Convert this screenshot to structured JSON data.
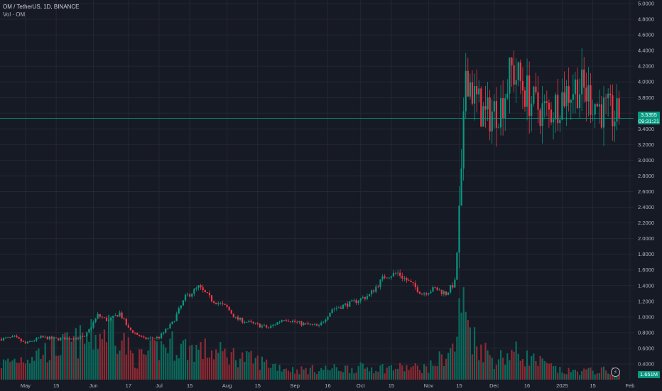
{
  "legend": {
    "symbol_line": "OM / TetherUS, 1D, BINANCE",
    "volume_line": "Vol · OM"
  },
  "price_tag": {
    "price": "3.5355",
    "countdown": "09:31:21"
  },
  "volume_tag": "1.651M",
  "scale_button": "⚡",
  "colors": {
    "background": "#161a25",
    "grid": "#242733",
    "up": "#089981",
    "down": "#f23645",
    "up_volume": "#0b6b5c",
    "down_volume": "#8e2a33",
    "axis_text": "#b2b5be",
    "last_price_line": "#089981"
  },
  "chart_data": {
    "type": "candlestick",
    "symbol": "OM / TetherUS",
    "interval": "1D",
    "exchange": "BINANCE",
    "y_axis": {
      "ylim": [
        0.2,
        5.0
      ],
      "ticks": [
        "5.0000",
        "4.8000",
        "4.6000",
        "4.4000",
        "4.2000",
        "4.0000",
        "3.8000",
        "3.6000",
        "3.4000",
        "3.2000",
        "3.0000",
        "2.8000",
        "2.6000",
        "2.4000",
        "2.2000",
        "2.0000",
        "1.8000",
        "1.6000",
        "1.4000",
        "1.2000",
        "1.0000",
        "0.8000",
        "0.6000",
        "0.4000"
      ],
      "tick_values": [
        5.0,
        4.8,
        4.6,
        4.4,
        4.2,
        4.0,
        3.8,
        3.6,
        3.4,
        3.2,
        3.0,
        2.8,
        2.6,
        2.4,
        2.2,
        2.0,
        1.8,
        1.6,
        1.4,
        1.2,
        1.0,
        0.8,
        0.6,
        0.4
      ]
    },
    "x_axis": {
      "start_date": "2024-04-20",
      "end_date": "2025-01-27",
      "tick_labels": [
        "May",
        "15",
        "Jun",
        "17",
        "Jul",
        "15",
        "Aug",
        "15",
        "Sep",
        "16",
        "Oct",
        "15",
        "Nov",
        "15",
        "Dec",
        "16",
        "2025",
        "15",
        "Feb"
      ],
      "tick_dates": [
        "2024-05-01",
        "2024-05-15",
        "2024-06-01",
        "2024-06-17",
        "2024-07-01",
        "2024-07-15",
        "2024-08-01",
        "2024-08-15",
        "2024-09-01",
        "2024-09-16",
        "2024-10-01",
        "2024-10-15",
        "2024-11-01",
        "2024-11-15",
        "2024-12-01",
        "2024-12-16",
        "2025-01-01",
        "2025-01-15",
        "2025-02-01"
      ]
    },
    "last_price": 3.5355,
    "price_path": [
      [
        "2024-04-20",
        0.72
      ],
      [
        "2024-04-26",
        0.74
      ],
      [
        "2024-05-01",
        0.66
      ],
      [
        "2024-05-08",
        0.74
      ],
      [
        "2024-05-15",
        0.72
      ],
      [
        "2024-05-22",
        0.73
      ],
      [
        "2024-05-28",
        0.74
      ],
      [
        "2024-06-03",
        1.02
      ],
      [
        "2024-06-08",
        0.95
      ],
      [
        "2024-06-13",
        1.05
      ],
      [
        "2024-06-17",
        0.85
      ],
      [
        "2024-06-24",
        0.72
      ],
      [
        "2024-07-01",
        0.74
      ],
      [
        "2024-07-07",
        0.92
      ],
      [
        "2024-07-13",
        1.25
      ],
      [
        "2024-07-19",
        1.38
      ],
      [
        "2024-07-25",
        1.22
      ],
      [
        "2024-08-01",
        1.12
      ],
      [
        "2024-08-05",
        0.98
      ],
      [
        "2024-08-12",
        0.92
      ],
      [
        "2024-08-20",
        0.86
      ],
      [
        "2024-08-27",
        0.98
      ],
      [
        "2024-09-03",
        0.92
      ],
      [
        "2024-09-12",
        0.88
      ],
      [
        "2024-09-18",
        1.1
      ],
      [
        "2024-09-27",
        1.18
      ],
      [
        "2024-10-05",
        1.28
      ],
      [
        "2024-10-12",
        1.52
      ],
      [
        "2024-10-18",
        1.56
      ],
      [
        "2024-10-25",
        1.4
      ],
      [
        "2024-10-29",
        1.3
      ],
      [
        "2024-11-04",
        1.36
      ],
      [
        "2024-11-09",
        1.3
      ],
      [
        "2024-11-13",
        1.44
      ],
      [
        "2024-11-16",
        2.6
      ],
      [
        "2024-11-18",
        4.2
      ],
      [
        "2024-11-22",
        3.8
      ],
      [
        "2024-11-27",
        3.55
      ],
      [
        "2024-12-04",
        3.7
      ],
      [
        "2024-12-09",
        4.15
      ],
      [
        "2024-12-14",
        3.95
      ],
      [
        "2024-12-19",
        3.7
      ],
      [
        "2024-12-26",
        3.6
      ],
      [
        "2025-01-02",
        3.85
      ],
      [
        "2025-01-08",
        3.95
      ],
      [
        "2025-01-14",
        3.8
      ],
      [
        "2025-01-20",
        3.62
      ],
      [
        "2025-01-27",
        3.5355
      ]
    ],
    "volume_profile": [
      [
        "2024-04-20",
        0.2
      ],
      [
        "2024-06-03",
        0.55
      ],
      [
        "2024-06-10",
        0.7
      ],
      [
        "2024-06-20",
        0.25
      ],
      [
        "2024-07-05",
        0.45
      ],
      [
        "2024-07-15",
        0.4
      ],
      [
        "2024-08-05",
        0.3
      ],
      [
        "2024-09-01",
        0.12
      ],
      [
        "2024-10-01",
        0.15
      ],
      [
        "2024-11-01",
        0.15
      ],
      [
        "2024-11-13",
        0.4
      ],
      [
        "2024-11-16",
        1.0
      ],
      [
        "2024-11-22",
        0.5
      ],
      [
        "2024-12-01",
        0.25
      ],
      [
        "2024-12-10",
        0.35
      ],
      [
        "2025-01-01",
        0.1
      ],
      [
        "2025-01-27",
        0.12
      ]
    ]
  }
}
